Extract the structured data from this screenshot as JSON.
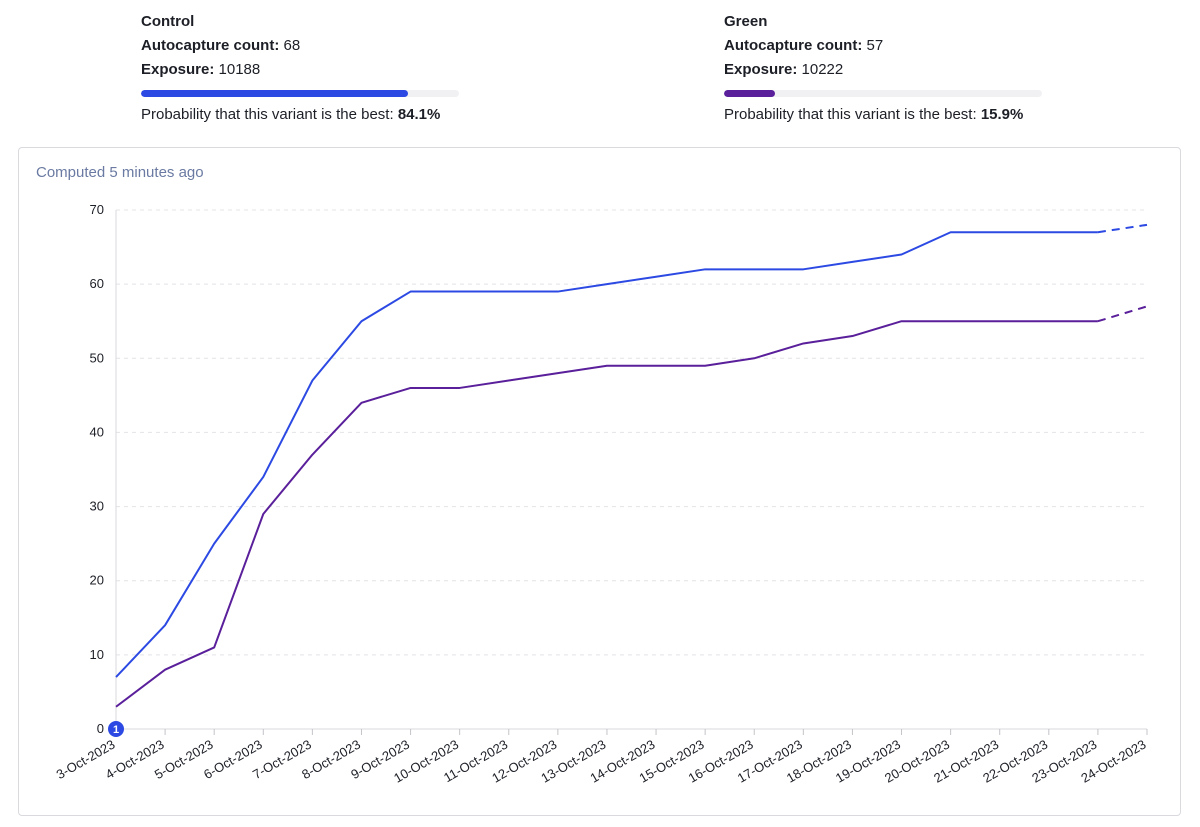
{
  "variants": [
    {
      "name": "Control",
      "count_label": "Autocapture count:",
      "count_value": "68",
      "exposure_label": "Exposure:",
      "exposure_value": "10188",
      "probability_label": "Probability that this variant is the best:",
      "probability_value": "84.1%",
      "probability": 0.841,
      "color": "#2c4ae3"
    },
    {
      "name": "Green",
      "count_label": "Autocapture count:",
      "count_value": "57",
      "exposure_label": "Exposure:",
      "exposure_value": "10222",
      "probability_label": "Probability that this variant is the best:",
      "probability_value": "15.9%",
      "probability": 0.159,
      "color": "#5a1f9a"
    }
  ],
  "computed_text": "Computed 5 minutes ago",
  "annotation_badge": "1",
  "chart_data": {
    "type": "line",
    "title": "",
    "xlabel": "",
    "ylabel": "",
    "ylim": [
      0,
      70
    ],
    "yticks": [
      0,
      10,
      20,
      30,
      40,
      50,
      60,
      70
    ],
    "grid": true,
    "categories": [
      "3-Oct-2023",
      "4-Oct-2023",
      "5-Oct-2023",
      "6-Oct-2023",
      "7-Oct-2023",
      "8-Oct-2023",
      "9-Oct-2023",
      "10-Oct-2023",
      "11-Oct-2023",
      "12-Oct-2023",
      "13-Oct-2023",
      "14-Oct-2023",
      "15-Oct-2023",
      "16-Oct-2023",
      "17-Oct-2023",
      "18-Oct-2023",
      "19-Oct-2023",
      "20-Oct-2023",
      "21-Oct-2023",
      "22-Oct-2023",
      "23-Oct-2023",
      "24-Oct-2023"
    ],
    "dashed_last_segment": true,
    "series": [
      {
        "color": "#2c4ae3",
        "values": [
          7,
          14,
          25,
          34,
          47,
          55,
          59,
          59,
          59,
          59,
          60,
          61,
          62,
          62,
          62,
          63,
          64,
          67,
          67,
          67,
          67,
          68
        ]
      },
      {
        "color": "#5a1f9a",
        "values": [
          3,
          8,
          11,
          29,
          37,
          44,
          46,
          46,
          47,
          48,
          49,
          49,
          49,
          50,
          52,
          53,
          55,
          55,
          55,
          55,
          55,
          57
        ]
      }
    ]
  }
}
